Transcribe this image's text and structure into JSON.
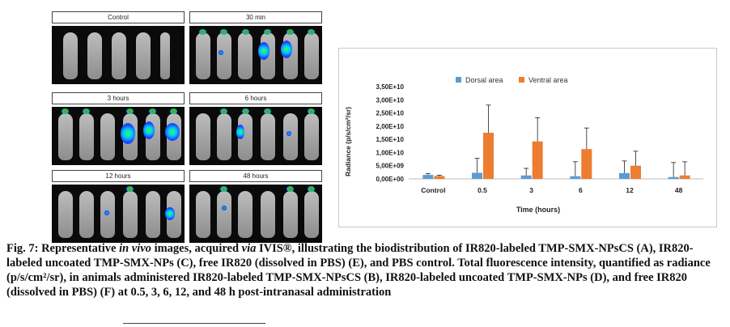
{
  "figure": {
    "panels": [
      {
        "label": "Control"
      },
      {
        "label": "30 min"
      },
      {
        "label": "3 hours"
      },
      {
        "label": "6 hours"
      },
      {
        "label": "12 hours"
      },
      {
        "label": "48 hours"
      }
    ]
  },
  "chart_data": {
    "type": "bar",
    "categories": [
      "Control",
      "0.5",
      "3",
      "6",
      "12",
      "48"
    ],
    "series": [
      {
        "name": "Dorsal area",
        "color": "#5b9bd5",
        "values": [
          1500000000.0,
          2300000000.0,
          1300000000.0,
          1000000000.0,
          2200000000.0,
          700000000.0
        ],
        "errors": [
          500000000.0,
          5500000000.0,
          2700000000.0,
          5500000000.0,
          4600000000.0,
          5500000000.0
        ]
      },
      {
        "name": "Ventral area",
        "color": "#ed7d31",
        "values": [
          1100000000.0,
          17500000000.0,
          14200000000.0,
          11300000000.0,
          5000000000.0,
          1300000000.0
        ],
        "errors": [
          300000000.0,
          10500000000.0,
          9000000000.0,
          8000000000.0,
          5500000000.0,
          5200000000.0
        ]
      }
    ],
    "ylim": [
      0,
      35000000000.0
    ],
    "yticks": [
      "0,00E+00",
      "5,00E+09",
      "1,00E+10",
      "1,50E+10",
      "2,00E+10",
      "2,50E+10",
      "3,00E+10",
      "3,50E+10"
    ],
    "xlabel": "Time (hours)",
    "ylabel": "Radiance (p/s/cm²/sr)",
    "legend": "top"
  },
  "caption": {
    "lead": "Fig. 7: Representative ",
    "italic1": "in vivo",
    "mid1": " images, acquired ",
    "italic2": "via",
    "rest": " IVIS®, illustrating the biodistribution of IR820-labeled TMP-SMX-NPsCS (A), IR820-labeled uncoated TMP-SMX-NPs (C), free IR820 (dissolved in PBS) (E), and PBS control. Total fluorescence intensity, quantified as radiance (p/s/cm²/sr), in animals administered IR820-labeled TMP-SMX-NPsCS (B), IR820-labeled uncoated TMP-SMX-NPs (D), and free IR820 (dissolved in PBS) (F) at 0.5, 3, 6, 12, and 48 h post-intranasal administration"
  }
}
